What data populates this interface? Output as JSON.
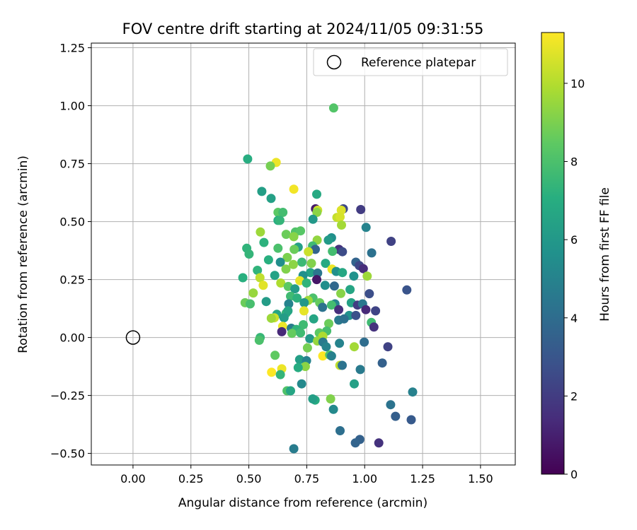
{
  "chart_data": {
    "type": "scatter",
    "title": "FOV centre drift starting at 2024/11/05 09:31:55",
    "xlabel": "Angular distance from reference (arcmin)",
    "ylabel": "Rotation from reference (arcmin)",
    "xlim": [
      -0.18,
      1.65
    ],
    "ylim": [
      -0.55,
      1.27
    ],
    "xticks": [
      "0.00",
      "0.25",
      "0.50",
      "0.75",
      "1.00",
      "1.25",
      "1.50"
    ],
    "yticks": [
      "−0.50",
      "−0.25",
      "0.00",
      "0.25",
      "0.50",
      "0.75",
      "1.00",
      "1.25"
    ],
    "grid": true,
    "legend": {
      "placement": "top-right",
      "label": "Reference platepar"
    },
    "reference_point": {
      "x": 0.0,
      "y": 0.0
    },
    "colorbar": {
      "label": "Hours from first FF file",
      "range": [
        0,
        11.3
      ],
      "ticks": [
        "0",
        "2",
        "4",
        "6",
        "8",
        "10"
      ],
      "colormap": "viridis"
    },
    "points": [
      [
        0.866,
        0.99,
        8.2
      ],
      [
        0.495,
        0.77,
        7.0
      ],
      [
        0.618,
        0.755,
        11.0
      ],
      [
        0.593,
        0.74,
        8.9
      ],
      [
        0.694,
        0.64,
        11.1
      ],
      [
        0.793,
        0.618,
        6.8
      ],
      [
        0.556,
        0.63,
        6.3
      ],
      [
        0.596,
        0.6,
        6.4
      ],
      [
        0.788,
        0.555,
        0.8
      ],
      [
        0.908,
        0.555,
        2.5
      ],
      [
        0.983,
        0.552,
        2.0
      ],
      [
        0.797,
        0.549,
        10.5
      ],
      [
        0.899,
        0.549,
        10.7
      ],
      [
        0.626,
        0.54,
        8.4
      ],
      [
        0.647,
        0.54,
        7.8
      ],
      [
        0.794,
        0.54,
        9.3
      ],
      [
        0.88,
        0.518,
        10.3
      ],
      [
        0.894,
        0.52,
        10.6
      ],
      [
        0.777,
        0.51,
        6.0
      ],
      [
        0.626,
        0.505,
        7.0
      ],
      [
        0.634,
        0.505,
        7.4
      ],
      [
        1.006,
        0.475,
        5.0
      ],
      [
        0.701,
        0.455,
        8.1
      ],
      [
        0.723,
        0.46,
        8.3
      ],
      [
        0.55,
        0.455,
        9.6
      ],
      [
        0.9,
        0.485,
        9.7
      ],
      [
        0.661,
        0.445,
        8.7
      ],
      [
        0.694,
        0.435,
        9.2
      ],
      [
        0.857,
        0.43,
        5.6
      ],
      [
        0.843,
        0.42,
        6.1
      ],
      [
        0.795,
        0.42,
        9.4
      ],
      [
        1.114,
        0.415,
        2.2
      ],
      [
        0.565,
        0.41,
        7.2
      ],
      [
        0.713,
        0.39,
        6.4
      ],
      [
        0.775,
        0.395,
        7.7
      ],
      [
        0.626,
        0.385,
        8.0
      ],
      [
        0.696,
        0.38,
        8.7
      ],
      [
        0.787,
        0.38,
        3.6
      ],
      [
        0.889,
        0.38,
        1.6
      ],
      [
        0.904,
        0.37,
        2.6
      ],
      [
        0.491,
        0.385,
        7.3
      ],
      [
        0.501,
        0.36,
        7.4
      ],
      [
        0.757,
        0.37,
        10.4
      ],
      [
        0.861,
        0.372,
        7.8
      ],
      [
        1.03,
        0.365,
        4.2
      ],
      [
        0.666,
        0.345,
        9.0
      ],
      [
        0.585,
        0.335,
        7.1
      ],
      [
        0.636,
        0.325,
        5.5
      ],
      [
        0.729,
        0.325,
        7.6
      ],
      [
        0.77,
        0.32,
        9.1
      ],
      [
        0.831,
        0.32,
        6.8
      ],
      [
        0.692,
        0.315,
        9.3
      ],
      [
        0.962,
        0.325,
        3.6
      ],
      [
        0.977,
        0.31,
        2.4
      ],
      [
        0.537,
        0.29,
        7.3
      ],
      [
        0.66,
        0.295,
        9.1
      ],
      [
        0.859,
        0.295,
        11.0
      ],
      [
        0.877,
        0.285,
        5.6
      ],
      [
        0.904,
        0.28,
        6.7
      ],
      [
        0.994,
        0.297,
        1.4
      ],
      [
        0.766,
        0.28,
        6.5
      ],
      [
        0.612,
        0.268,
        6.5
      ],
      [
        0.734,
        0.268,
        5.6
      ],
      [
        0.797,
        0.278,
        4.4
      ],
      [
        0.953,
        0.265,
        5.7
      ],
      [
        1.011,
        0.265,
        9.6
      ],
      [
        0.474,
        0.258,
        7.1
      ],
      [
        0.548,
        0.258,
        10.2
      ],
      [
        0.72,
        0.245,
        10.9
      ],
      [
        0.793,
        0.25,
        0.7
      ],
      [
        0.638,
        0.235,
        9.9
      ],
      [
        0.562,
        0.225,
        10.8
      ],
      [
        0.749,
        0.235,
        7.3
      ],
      [
        0.67,
        0.22,
        8.4
      ],
      [
        0.829,
        0.225,
        5.5
      ],
      [
        0.869,
        0.222,
        3.8
      ],
      [
        1.182,
        0.205,
        2.9
      ],
      [
        0.699,
        0.21,
        6.2
      ],
      [
        0.937,
        0.207,
        6.6
      ],
      [
        0.897,
        0.19,
        9.2
      ],
      [
        0.519,
        0.192,
        9.5
      ],
      [
        1.02,
        0.189,
        2.7
      ],
      [
        0.68,
        0.178,
        7.7
      ],
      [
        0.708,
        0.17,
        7.2
      ],
      [
        0.777,
        0.17,
        8.0
      ],
      [
        0.756,
        0.16,
        9.6
      ],
      [
        0.739,
        0.15,
        6.0
      ],
      [
        0.575,
        0.155,
        6.2
      ],
      [
        0.484,
        0.15,
        8.7
      ],
      [
        0.506,
        0.145,
        7.9
      ],
      [
        0.672,
        0.145,
        5.0
      ],
      [
        0.806,
        0.15,
        8.6
      ],
      [
        0.872,
        0.145,
        5.1
      ],
      [
        0.818,
        0.13,
        4.3
      ],
      [
        0.857,
        0.14,
        7.8
      ],
      [
        0.942,
        0.15,
        6.4
      ],
      [
        0.969,
        0.14,
        2.0
      ],
      [
        0.991,
        0.145,
        4.5
      ],
      [
        0.738,
        0.115,
        10.9
      ],
      [
        0.888,
        0.12,
        1.5
      ],
      [
        1.005,
        0.12,
        1.3
      ],
      [
        1.047,
        0.115,
        2.3
      ],
      [
        0.621,
        0.1,
        6.6
      ],
      [
        0.661,
        0.105,
        7.4
      ],
      [
        0.669,
        0.115,
        6.6
      ],
      [
        0.933,
        0.095,
        5.7
      ],
      [
        0.962,
        0.095,
        2.8
      ],
      [
        0.61,
        0.085,
        10.4
      ],
      [
        0.597,
        0.083,
        9.6
      ],
      [
        0.652,
        0.085,
        6.2
      ],
      [
        0.78,
        0.08,
        6.6
      ],
      [
        0.888,
        0.075,
        4.6
      ],
      [
        0.911,
        0.08,
        4.2
      ],
      [
        1.029,
        0.065,
        7.7
      ],
      [
        0.845,
        0.06,
        8.7
      ],
      [
        0.735,
        0.055,
        7.7
      ],
      [
        0.646,
        0.048,
        11.0
      ],
      [
        1.04,
        0.045,
        1.6
      ],
      [
        0.683,
        0.04,
        4.7
      ],
      [
        0.705,
        0.035,
        7.3
      ],
      [
        0.836,
        0.028,
        7.9
      ],
      [
        0.642,
        0.025,
        1.3
      ],
      [
        0.686,
        0.018,
        8.6
      ],
      [
        0.804,
        0.02,
        8.4
      ],
      [
        0.723,
        0.02,
        7.7
      ],
      [
        0.819,
        0.005,
        9.9
      ],
      [
        0.763,
        -0.005,
        6.0
      ],
      [
        0.549,
        0.0,
        7.5
      ],
      [
        0.545,
        -0.012,
        8.0
      ],
      [
        0.796,
        -0.015,
        9.5
      ],
      [
        0.82,
        -0.02,
        4.6
      ],
      [
        0.891,
        -0.025,
        5.0
      ],
      [
        0.998,
        -0.02,
        4.0
      ],
      [
        0.834,
        -0.04,
        5.0
      ],
      [
        0.753,
        -0.045,
        8.9
      ],
      [
        0.955,
        -0.04,
        9.7
      ],
      [
        1.1,
        -0.04,
        2.2
      ],
      [
        0.819,
        -0.08,
        11.3
      ],
      [
        0.849,
        -0.075,
        8.1
      ],
      [
        0.857,
        -0.08,
        4.9
      ],
      [
        0.613,
        -0.077,
        8.5
      ],
      [
        0.719,
        -0.095,
        6.3
      ],
      [
        0.749,
        -0.1,
        5.0
      ],
      [
        1.076,
        -0.11,
        3.5
      ],
      [
        0.893,
        -0.12,
        10.2
      ],
      [
        0.903,
        -0.12,
        4.3
      ],
      [
        0.744,
        -0.125,
        9.3
      ],
      [
        0.713,
        -0.13,
        6.9
      ],
      [
        0.642,
        -0.135,
        11.0
      ],
      [
        0.598,
        -0.15,
        11.3
      ],
      [
        0.636,
        -0.16,
        7.4
      ],
      [
        0.981,
        -0.138,
        4.6
      ],
      [
        0.728,
        -0.2,
        5.3
      ],
      [
        0.955,
        -0.2,
        6.4
      ],
      [
        0.665,
        -0.23,
        8.1
      ],
      [
        0.68,
        -0.23,
        6.6
      ],
      [
        1.207,
        -0.235,
        4.9
      ],
      [
        0.786,
        -0.27,
        6.9
      ],
      [
        0.776,
        -0.265,
        6.3
      ],
      [
        0.853,
        -0.265,
        9.1
      ],
      [
        1.112,
        -0.29,
        4.3
      ],
      [
        0.865,
        -0.31,
        5.3
      ],
      [
        1.133,
        -0.34,
        3.4
      ],
      [
        1.201,
        -0.355,
        3.2
      ],
      [
        0.894,
        -0.402,
        4.1
      ],
      [
        0.979,
        -0.44,
        3.5
      ],
      [
        0.96,
        -0.455,
        3.6
      ],
      [
        1.061,
        -0.455,
        1.6
      ],
      [
        0.694,
        -0.48,
        4.7
      ]
    ]
  }
}
